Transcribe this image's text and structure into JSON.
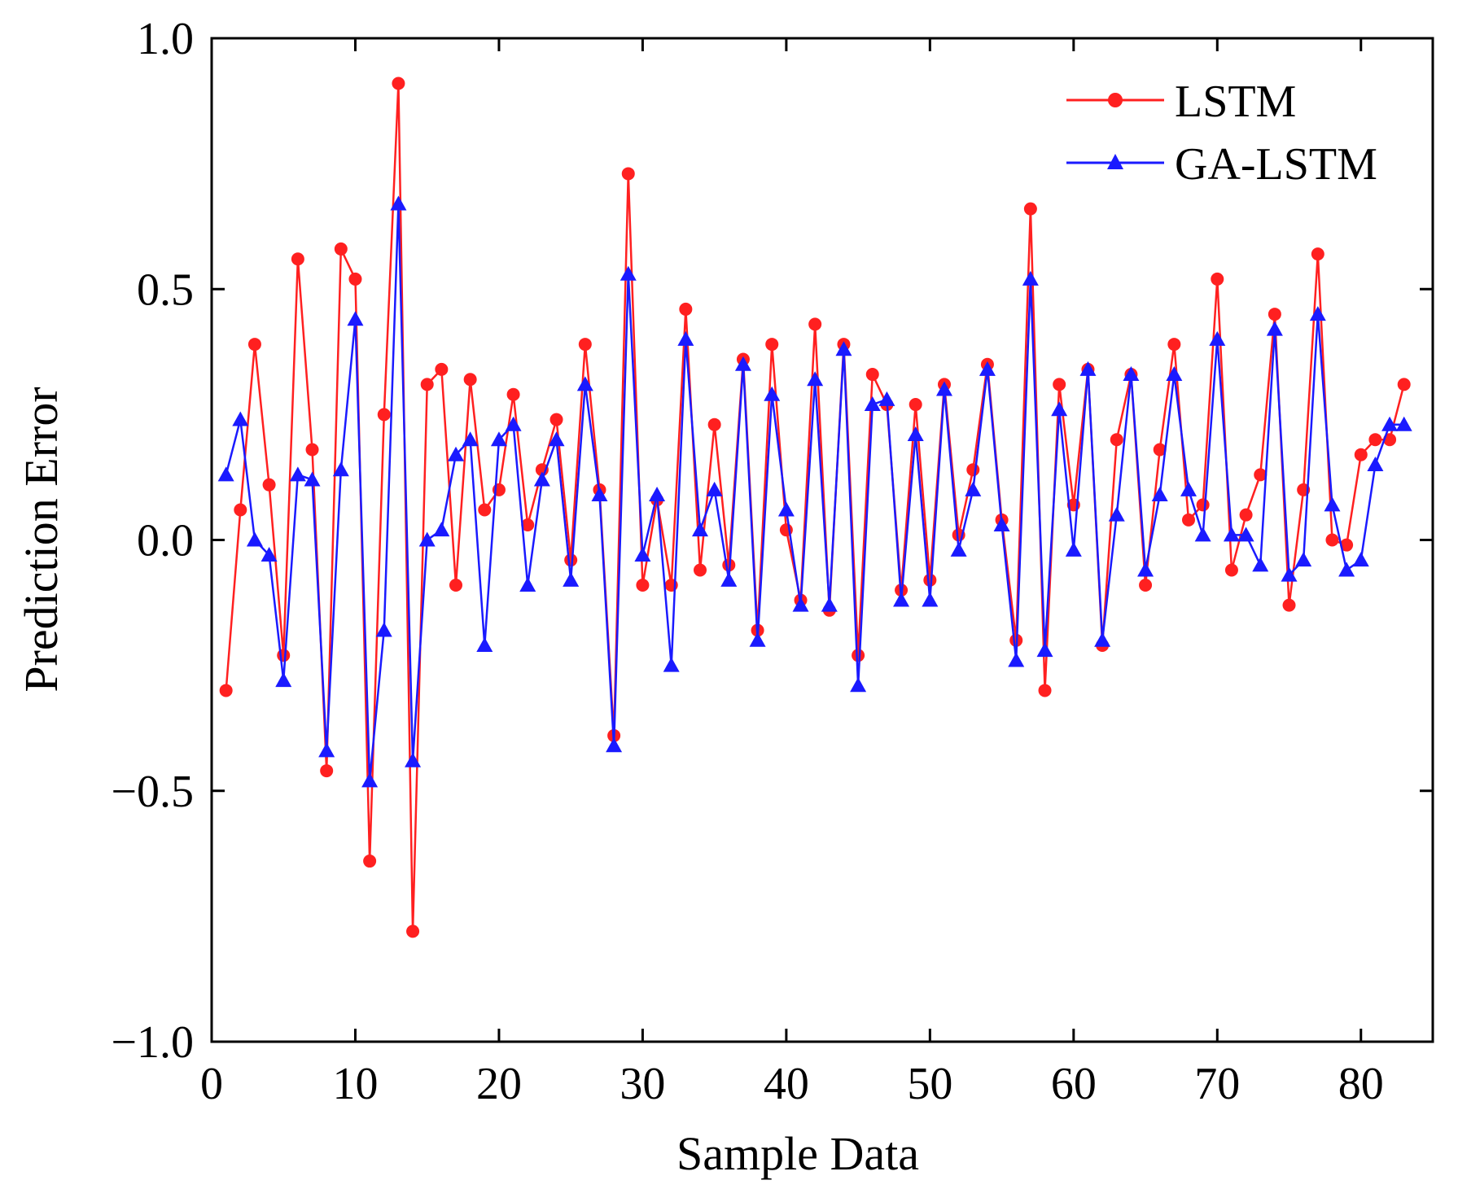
{
  "chart_data": {
    "type": "line",
    "title": "",
    "xlabel": "Sample Data",
    "ylabel": "Prediction Error",
    "xlim": [
      0,
      85
    ],
    "ylim": [
      -1.0,
      1.0
    ],
    "xticks": [
      0,
      10,
      20,
      30,
      40,
      50,
      60,
      70,
      80
    ],
    "xtick_labels": [
      "0",
      "10",
      "20",
      "30",
      "40",
      "50",
      "60",
      "70",
      "80"
    ],
    "yticks": [
      -1.0,
      -0.5,
      0.0,
      0.5,
      1.0
    ],
    "ytick_labels": [
      "−1.0",
      "−0.5",
      "0.0",
      "0.5",
      "1.0"
    ],
    "grid": false,
    "legend_position": "top-right",
    "x": [
      1,
      2,
      3,
      4,
      5,
      6,
      7,
      8,
      9,
      10,
      11,
      12,
      13,
      14,
      15,
      16,
      17,
      18,
      19,
      20,
      21,
      22,
      23,
      24,
      25,
      26,
      27,
      28,
      29,
      30,
      31,
      32,
      33,
      34,
      35,
      36,
      37,
      38,
      39,
      40,
      41,
      42,
      43,
      44,
      45,
      46,
      47,
      48,
      49,
      50,
      51,
      52,
      53,
      54,
      55,
      56,
      57,
      58,
      59,
      60,
      61,
      62,
      63,
      64,
      65,
      66,
      67,
      68,
      69,
      70,
      71,
      72,
      73,
      74,
      75,
      76,
      77,
      78,
      79,
      80,
      81,
      82,
      83
    ],
    "series": [
      {
        "name": "LSTM",
        "color": "#ff2020",
        "marker": "circle",
        "values": [
          -0.3,
          0.06,
          0.39,
          0.11,
          -0.23,
          0.56,
          0.18,
          -0.46,
          0.58,
          0.52,
          -0.64,
          0.25,
          0.91,
          -0.78,
          0.31,
          0.34,
          -0.09,
          0.32,
          0.06,
          0.1,
          0.29,
          0.03,
          0.14,
          0.24,
          -0.04,
          0.39,
          0.1,
          -0.39,
          0.73,
          -0.09,
          0.08,
          -0.09,
          0.46,
          -0.06,
          0.23,
          -0.05,
          0.36,
          -0.18,
          0.39,
          0.02,
          -0.12,
          0.43,
          -0.14,
          0.39,
          -0.23,
          0.33,
          0.27,
          -0.1,
          0.27,
          -0.08,
          0.31,
          0.01,
          0.14,
          0.35,
          0.04,
          -0.2,
          0.66,
          -0.3,
          0.31,
          0.07,
          0.34,
          -0.21,
          0.2,
          0.33,
          -0.09,
          0.18,
          0.39,
          0.04,
          0.07,
          0.52,
          -0.06,
          0.05,
          0.13,
          0.45,
          -0.13,
          0.1,
          0.57,
          0.0,
          -0.01,
          0.17,
          0.2,
          0.2,
          0.31
        ]
      },
      {
        "name": "GA-LSTM",
        "color": "#1a1aff",
        "marker": "triangle",
        "values": [
          0.13,
          0.24,
          0.0,
          -0.03,
          -0.28,
          0.13,
          0.12,
          -0.42,
          0.14,
          0.44,
          -0.48,
          -0.18,
          0.67,
          -0.44,
          0.0,
          0.02,
          0.17,
          0.2,
          -0.21,
          0.2,
          0.23,
          -0.09,
          0.12,
          0.2,
          -0.08,
          0.31,
          0.09,
          -0.41,
          0.53,
          -0.03,
          0.09,
          -0.25,
          0.4,
          0.02,
          0.1,
          -0.08,
          0.35,
          -0.2,
          0.29,
          0.06,
          -0.13,
          0.32,
          -0.13,
          0.38,
          -0.29,
          0.27,
          0.28,
          -0.12,
          0.21,
          -0.12,
          0.3,
          -0.02,
          0.1,
          0.34,
          0.03,
          -0.24,
          0.52,
          -0.22,
          0.26,
          -0.02,
          0.34,
          -0.2,
          0.05,
          0.33,
          -0.06,
          0.09,
          0.33,
          0.1,
          0.01,
          0.4,
          0.01,
          0.01,
          -0.05,
          0.42,
          -0.07,
          -0.04,
          0.45,
          0.07,
          -0.06,
          -0.04,
          0.15,
          0.23,
          0.23
        ]
      }
    ]
  }
}
